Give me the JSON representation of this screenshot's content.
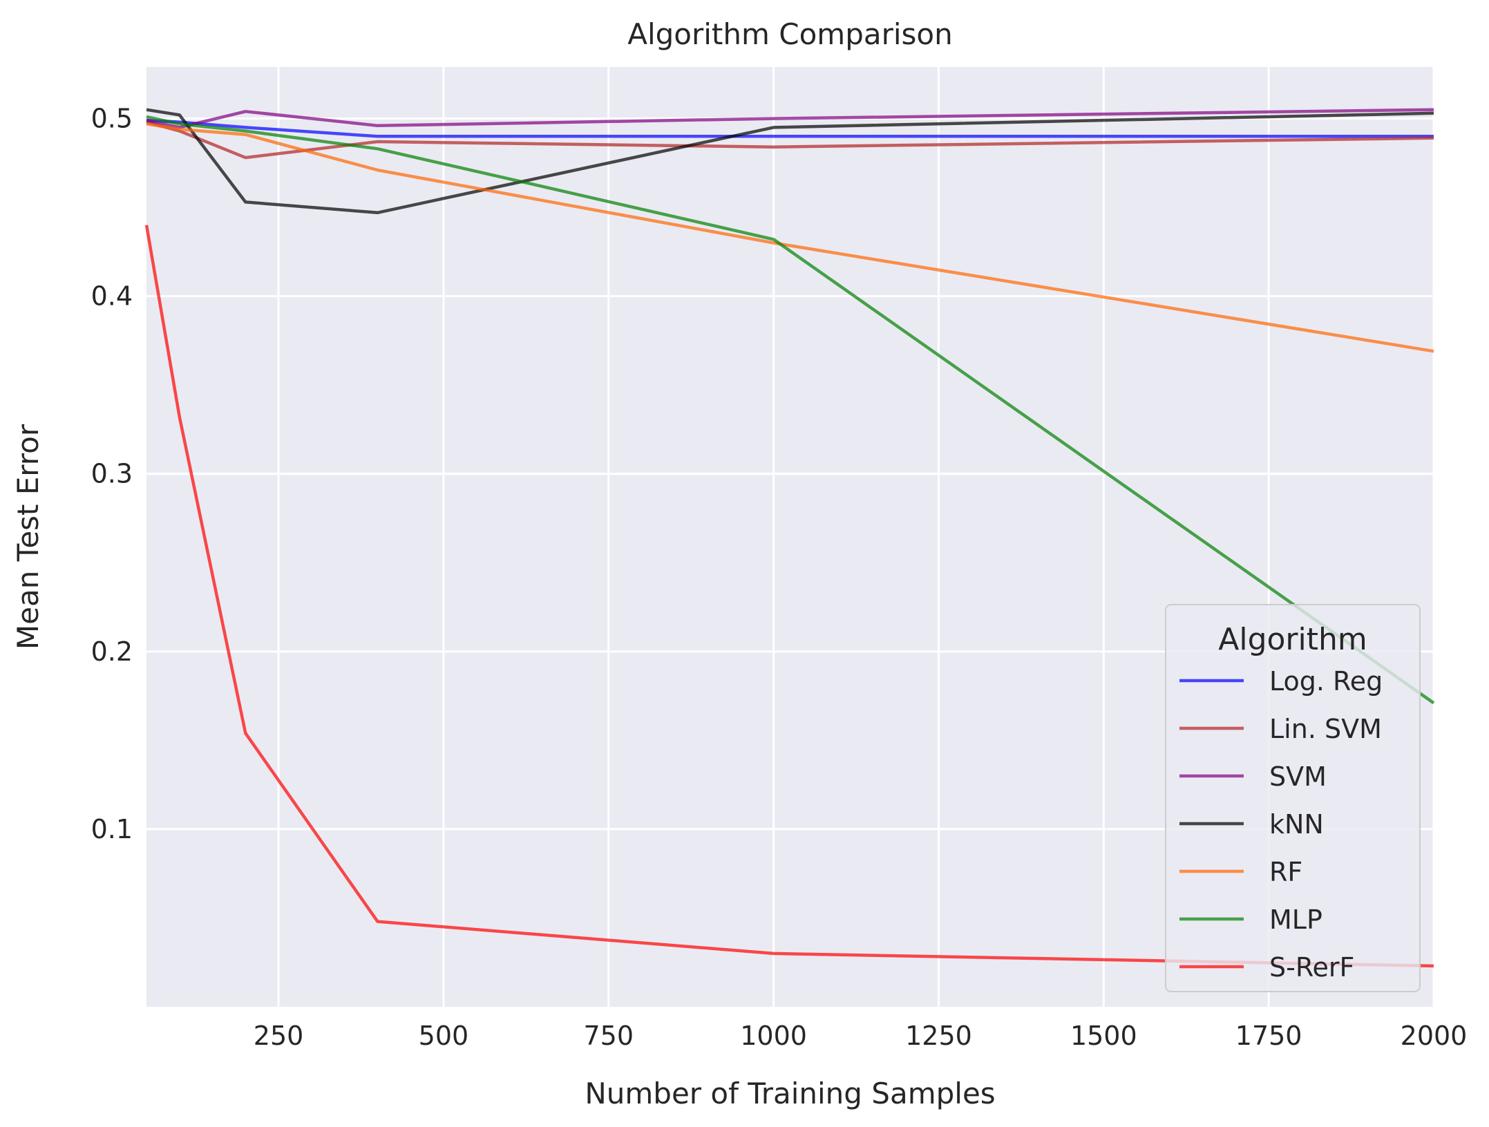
{
  "chart_data": {
    "type": "line",
    "title": "Algorithm Comparison",
    "xlabel": "Number of Training Samples",
    "ylabel": "Mean Test Error",
    "xlim": [
      50,
      2000
    ],
    "ylim": [
      0.0,
      0.529
    ],
    "xticks": [
      250,
      500,
      750,
      1000,
      1250,
      1500,
      1750,
      2000
    ],
    "xtick_labels": [
      "250",
      "500",
      "750",
      "1000",
      "1250",
      "1500",
      "1750",
      "2000"
    ],
    "yticks": [
      0.1,
      0.2,
      0.3,
      0.4,
      0.5
    ],
    "ytick_labels": [
      "0.1",
      "0.2",
      "0.3",
      "0.4",
      "0.5"
    ],
    "grid": true,
    "legend": {
      "title": "Algorithm",
      "placement": "lower-right"
    },
    "x": [
      50,
      100,
      200,
      400,
      1000,
      2000
    ],
    "series": [
      {
        "name": "Log. Reg",
        "color": "#0000ff",
        "values": [
          0.499,
          0.498,
          0.495,
          0.49,
          0.49,
          0.49
        ]
      },
      {
        "name": "Lin. SVM",
        "color": "#b22222",
        "values": [
          0.498,
          0.493,
          0.478,
          0.487,
          0.484,
          0.489
        ]
      },
      {
        "name": "SVM",
        "color": "#800080",
        "values": [
          0.499,
          0.495,
          0.504,
          0.496,
          0.5,
          0.505
        ]
      },
      {
        "name": "kNN",
        "color": "#000000",
        "values": [
          0.505,
          0.502,
          0.453,
          0.447,
          0.495,
          0.503
        ]
      },
      {
        "name": "RF",
        "color": "#ff6600",
        "values": [
          0.497,
          0.494,
          0.491,
          0.471,
          0.43,
          0.369
        ]
      },
      {
        "name": "MLP",
        "color": "#008000",
        "values": [
          0.501,
          0.497,
          0.493,
          0.483,
          0.432,
          0.171
        ]
      },
      {
        "name": "S-RerF",
        "color": "#ff0000",
        "values": [
          0.44,
          0.332,
          0.154,
          0.048,
          0.03,
          0.023
        ]
      }
    ]
  }
}
